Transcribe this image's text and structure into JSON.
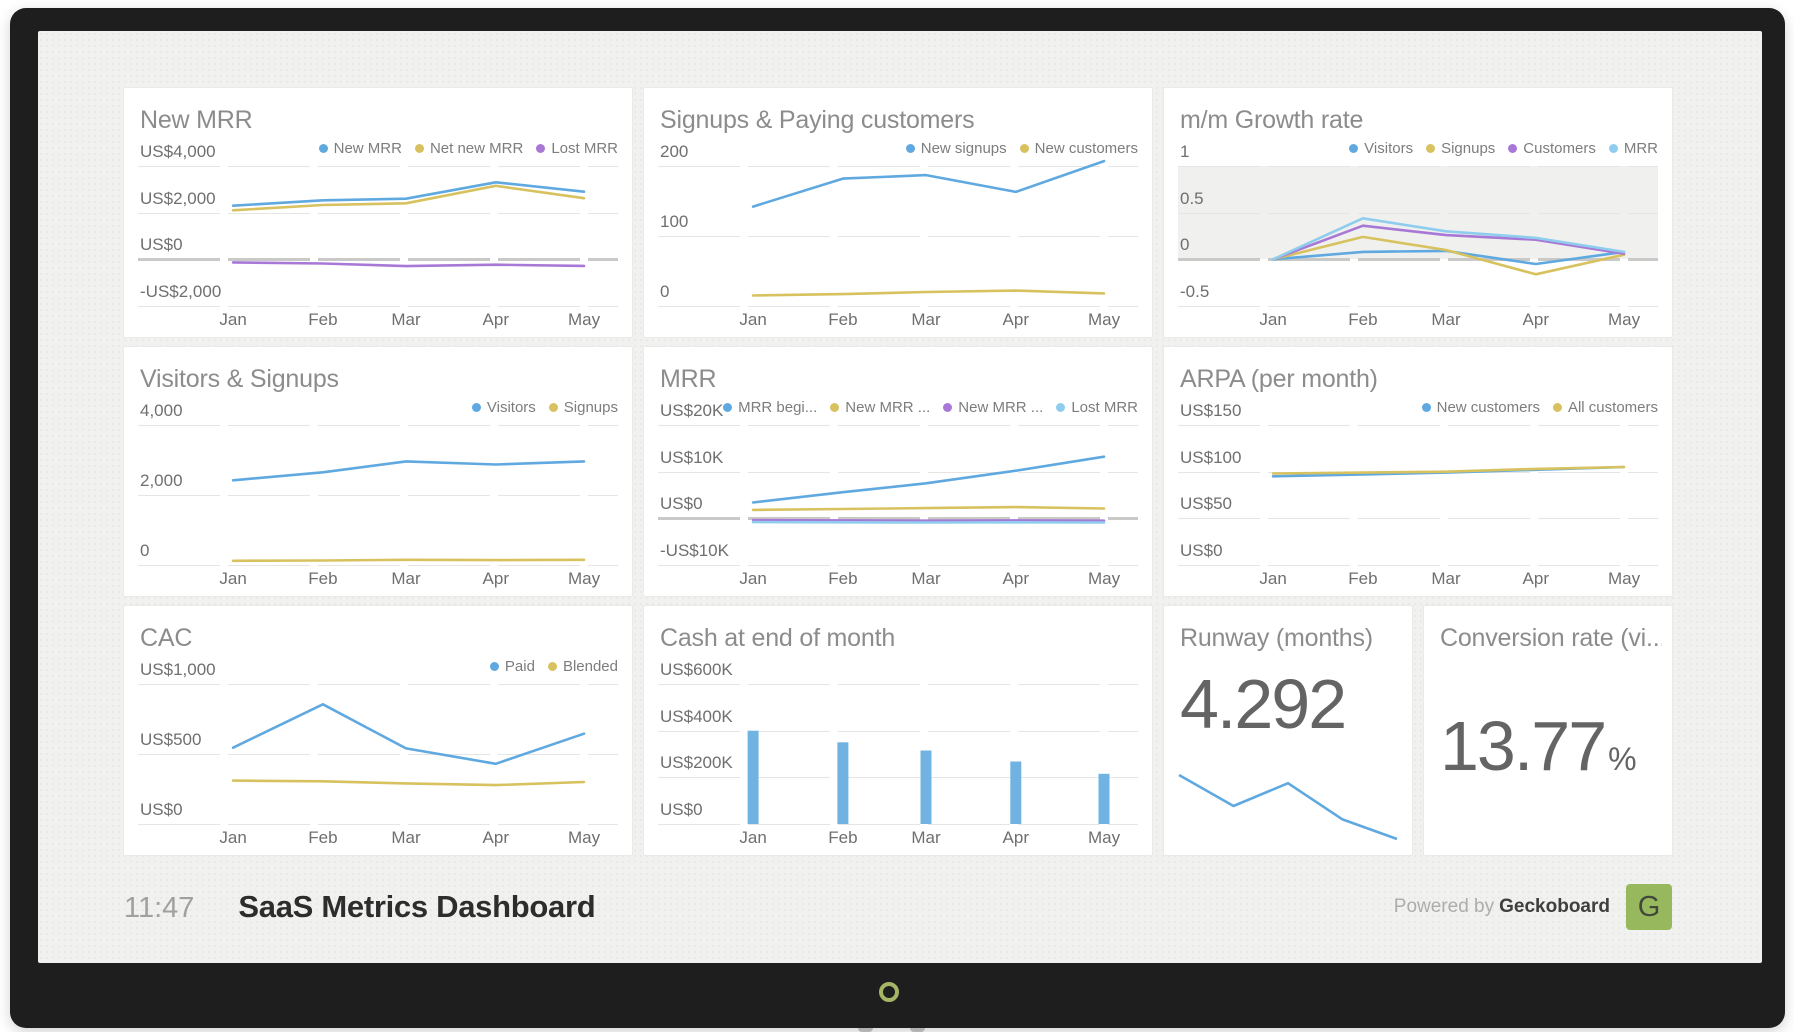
{
  "footer": {
    "time": "11:47",
    "title": "SaaS Metrics Dashboard",
    "powered_by_prefix": "Powered by",
    "brand": "Geckoboard",
    "logo_letter": "G"
  },
  "palette": {
    "blue": "#5fa9e0",
    "yellow": "#d7c25f",
    "purple": "#a878d6",
    "lightblue": "#8ecdee",
    "bar": "#70b3e2",
    "grid": "#e5e5e3",
    "zero": "#c9c9c7",
    "logo_green": "#98b85e"
  },
  "chart_data": [
    {
      "type": "line",
      "title": "New MRR",
      "y_tick_labels": [
        "US$4,000",
        "US$2,000",
        "US$0",
        "-US$2,000"
      ],
      "y_tick_values": [
        4000,
        2000,
        0,
        -2000
      ],
      "categories": [
        "Jan",
        "Feb",
        "Mar",
        "Apr",
        "May"
      ],
      "zero_line": true,
      "series": [
        {
          "name": "New MRR",
          "color": "blue",
          "values": [
            2300,
            2530,
            2600,
            3300,
            2900
          ]
        },
        {
          "name": "Net new MRR",
          "color": "yellow",
          "values": [
            2100,
            2330,
            2400,
            3150,
            2620
          ]
        },
        {
          "name": "Lost MRR",
          "color": "purple",
          "values": [
            -130,
            -180,
            -290,
            -230,
            -280
          ]
        }
      ]
    },
    {
      "type": "line",
      "title": "Signups & Paying customers",
      "y_tick_labels": [
        "200",
        "100",
        "0"
      ],
      "y_tick_values": [
        200,
        100,
        0
      ],
      "categories": [
        "Jan",
        "Feb",
        "Mar",
        "Apr",
        "May"
      ],
      "series": [
        {
          "name": "New signups",
          "color": "blue",
          "values": [
            142,
            182,
            187,
            163,
            207
          ]
        },
        {
          "name": "New customers",
          "color": "yellow",
          "values": [
            15,
            17,
            20,
            22,
            18
          ]
        }
      ]
    },
    {
      "type": "line",
      "title": "m/m Growth rate",
      "y_tick_labels": [
        "1",
        "0.5",
        "0",
        "-0.5"
      ],
      "y_tick_values": [
        1,
        0.5,
        0,
        -0.5
      ],
      "categories": [
        "Jan",
        "Feb",
        "Mar",
        "Apr",
        "May"
      ],
      "zero_line": true,
      "band": [
        0,
        1
      ],
      "series": [
        {
          "name": "Visitors",
          "color": "blue",
          "values": [
            0,
            0.08,
            0.09,
            -0.05,
            0.08
          ]
        },
        {
          "name": "Signups",
          "color": "yellow",
          "values": [
            0,
            0.24,
            0.1,
            -0.16,
            0.05
          ]
        },
        {
          "name": "Customers",
          "color": "purple",
          "values": [
            0,
            0.36,
            0.26,
            0.21,
            0.06
          ]
        },
        {
          "name": "MRR",
          "color": "lightblue",
          "values": [
            0,
            0.44,
            0.3,
            0.23,
            0.08
          ]
        }
      ]
    },
    {
      "type": "line",
      "title": "Visitors & Signups",
      "y_tick_labels": [
        "4,000",
        "2,000",
        "0"
      ],
      "y_tick_values": [
        4000,
        2000,
        0
      ],
      "categories": [
        "Jan",
        "Feb",
        "Mar",
        "Apr",
        "May"
      ],
      "series": [
        {
          "name": "Visitors",
          "color": "blue",
          "values": [
            2420,
            2650,
            2960,
            2870,
            2960
          ]
        },
        {
          "name": "Signups",
          "color": "yellow",
          "values": [
            120,
            130,
            150,
            140,
            150
          ]
        }
      ]
    },
    {
      "type": "line",
      "title": "MRR",
      "y_tick_labels": [
        "US$20K",
        "US$10K",
        "US$0",
        "-US$10K"
      ],
      "y_tick_values": [
        20000,
        10000,
        0,
        -10000
      ],
      "categories": [
        "Jan",
        "Feb",
        "Mar",
        "Apr",
        "May"
      ],
      "zero_line": true,
      "series": [
        {
          "name": "MRR begi...",
          "color": "blue",
          "values": [
            3400,
            5600,
            7500,
            10200,
            13200
          ]
        },
        {
          "name": "New MRR ...",
          "color": "yellow",
          "values": [
            1800,
            2000,
            2200,
            2400,
            2100
          ]
        },
        {
          "name": "New MRR ...",
          "color": "purple",
          "values": [
            -400,
            -450,
            -500,
            -450,
            -500
          ]
        },
        {
          "name": "Lost MRR",
          "color": "lightblue",
          "values": [
            -800,
            -850,
            -900,
            -850,
            -900
          ]
        }
      ]
    },
    {
      "type": "line",
      "title": "ARPA (per month)",
      "y_tick_labels": [
        "US$150",
        "US$100",
        "US$50",
        "US$0"
      ],
      "y_tick_values": [
        150,
        100,
        50,
        0
      ],
      "categories": [
        "Jan",
        "Feb",
        "Mar",
        "Apr",
        "May"
      ],
      "series": [
        {
          "name": "New customers",
          "color": "blue",
          "values": [
            95,
            97,
            99,
            102,
            105
          ]
        },
        {
          "name": "All customers",
          "color": "yellow",
          "values": [
            98,
            99,
            100,
            103,
            105
          ]
        }
      ]
    },
    {
      "type": "line",
      "title": "CAC",
      "y_tick_labels": [
        "US$1,000",
        "US$500",
        "US$0"
      ],
      "y_tick_values": [
        1000,
        500,
        0
      ],
      "categories": [
        "Jan",
        "Feb",
        "Mar",
        "Apr",
        "May"
      ],
      "series": [
        {
          "name": "Paid",
          "color": "blue",
          "values": [
            545,
            855,
            540,
            430,
            645
          ]
        },
        {
          "name": "Blended",
          "color": "yellow",
          "values": [
            310,
            305,
            290,
            278,
            300
          ]
        }
      ]
    },
    {
      "type": "bar",
      "title": "Cash at end of month",
      "y_tick_labels": [
        "US$600K",
        "US$400K",
        "US$200K",
        "US$0"
      ],
      "y_tick_values": [
        600000,
        400000,
        200000,
        0
      ],
      "categories": [
        "Jan",
        "Feb",
        "Mar",
        "Apr",
        "May"
      ],
      "series": [
        {
          "name": "Cash",
          "color": "bar",
          "values": [
            400000,
            350000,
            315000,
            268000,
            215000
          ]
        }
      ]
    },
    {
      "type": "number+spark",
      "title": "Runway (months)",
      "value": "4.292",
      "spark_values": [
        4.95,
        4.46,
        4.82,
        4.25,
        3.94
      ]
    },
    {
      "type": "number",
      "title": "Conversion rate (vi...",
      "value": "13.77",
      "suffix": "%"
    }
  ]
}
